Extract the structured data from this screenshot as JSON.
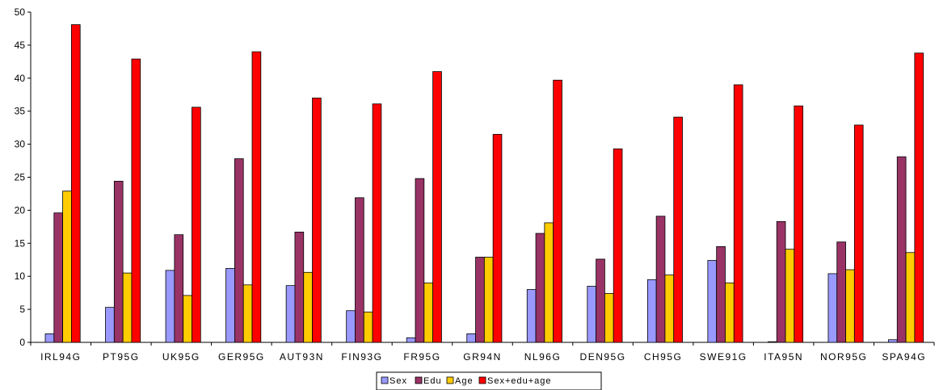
{
  "chart_data": {
    "type": "bar",
    "title": "",
    "xlabel": "",
    "ylabel": "",
    "ylim": [
      0,
      50
    ],
    "yticks": [
      0,
      5,
      10,
      15,
      20,
      25,
      30,
      35,
      40,
      45,
      50
    ],
    "grid": false,
    "legend_position": "bottom",
    "categories": [
      "IRL94G",
      "PT95G",
      "UK95G",
      "GER95G",
      "AUT93N",
      "FIN93G",
      "FR95G",
      "GR94N",
      "NL96G",
      "DEN95G",
      "CH95G",
      "SWE91G",
      "ITA95N",
      "NOR95G",
      "SPA94G"
    ],
    "series": [
      {
        "name": "Sex",
        "color": "#9999ff",
        "values": [
          1.3,
          5.3,
          10.9,
          11.2,
          8.6,
          4.8,
          0.7,
          1.3,
          8.0,
          8.5,
          9.5,
          12.4,
          0.1,
          10.4,
          0.4
        ]
      },
      {
        "name": "Edu",
        "color": "#993366",
        "values": [
          19.6,
          24.4,
          16.3,
          27.8,
          16.7,
          21.9,
          24.8,
          12.9,
          16.5,
          12.6,
          19.1,
          14.5,
          18.3,
          15.2,
          28.1
        ]
      },
      {
        "name": "Age",
        "color": "#ffcc00",
        "values": [
          22.9,
          10.5,
          7.1,
          8.7,
          10.6,
          4.6,
          9.0,
          12.9,
          18.1,
          7.4,
          10.2,
          9.0,
          14.1,
          11.0,
          13.6
        ]
      },
      {
        "name": "Sex+edu+age",
        "color": "#ff0000",
        "values": [
          48.1,
          42.9,
          35.6,
          44.0,
          37.0,
          36.1,
          41.0,
          31.5,
          39.7,
          29.3,
          34.1,
          39.0,
          35.8,
          32.9,
          43.8
        ]
      }
    ]
  }
}
